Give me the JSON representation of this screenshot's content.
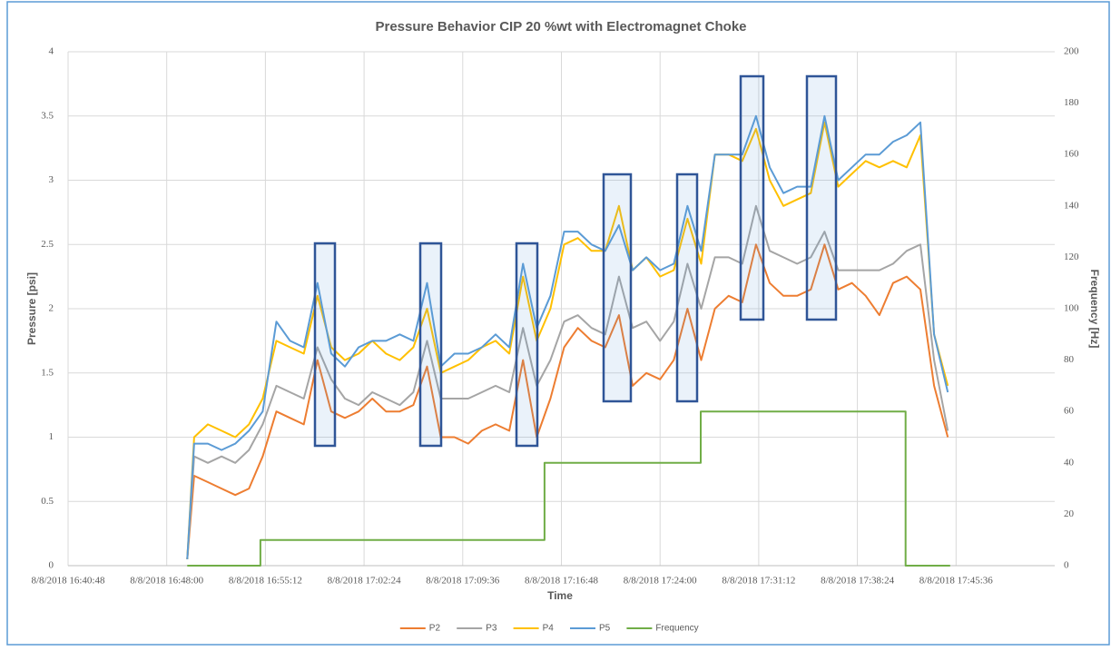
{
  "chart_data": {
    "type": "line",
    "title": "Pressure Behavior CIP 20 %wt with Electromagnet Choke",
    "x_label": "Time",
    "y_label": "Pressure [psi]",
    "y2_label": "Frequency [Hz]",
    "xlim": [
      "2018-08-08T16:40:48",
      "2018-08-08T17:52:48"
    ],
    "xticks": [
      {
        "value": "2018-08-08T16:40:48",
        "label": "8/8/2018 16:40:48"
      },
      {
        "value": "2018-08-08T16:48:00",
        "label": "8/8/2018 16:48:00"
      },
      {
        "value": "2018-08-08T16:55:12",
        "label": "8/8/2018 16:55:12"
      },
      {
        "value": "2018-08-08T17:02:24",
        "label": "8/8/2018 17:02:24"
      },
      {
        "value": "2018-08-08T17:09:36",
        "label": "8/8/2018 17:09:36"
      },
      {
        "value": "2018-08-08T17:16:48",
        "label": "8/8/2018 17:16:48"
      },
      {
        "value": "2018-08-08T17:24:00",
        "label": "8/8/2018 17:24:00"
      },
      {
        "value": "2018-08-08T17:31:12",
        "label": "8/8/2018 17:31:12"
      },
      {
        "value": "2018-08-08T17:38:24",
        "label": "8/8/2018 17:38:24"
      },
      {
        "value": "2018-08-08T17:45:36",
        "label": "8/8/2018 17:45:36"
      }
    ],
    "ylim": [
      0,
      4
    ],
    "yticks": [
      0,
      0.5,
      1,
      1.5,
      2,
      2.5,
      3,
      3.5,
      4
    ],
    "y2lim": [
      0,
      200
    ],
    "y2ticks": [
      0,
      20,
      40,
      60,
      80,
      100,
      120,
      140,
      160,
      180,
      200
    ],
    "grid": true,
    "legend": "bottom",
    "x": [
      "2018-08-08T16:49:30",
      "2018-08-08T16:50:00",
      "2018-08-08T16:51:00",
      "2018-08-08T16:52:00",
      "2018-08-08T16:53:00",
      "2018-08-08T16:54:00",
      "2018-08-08T16:55:00",
      "2018-08-08T16:56:00",
      "2018-08-08T16:57:00",
      "2018-08-08T16:58:00",
      "2018-08-08T16:59:00",
      "2018-08-08T17:00:00",
      "2018-08-08T17:01:00",
      "2018-08-08T17:02:00",
      "2018-08-08T17:03:00",
      "2018-08-08T17:04:00",
      "2018-08-08T17:05:00",
      "2018-08-08T17:06:00",
      "2018-08-08T17:07:00",
      "2018-08-08T17:08:00",
      "2018-08-08T17:09:00",
      "2018-08-08T17:10:00",
      "2018-08-08T17:11:00",
      "2018-08-08T17:12:00",
      "2018-08-08T17:13:00",
      "2018-08-08T17:14:00",
      "2018-08-08T17:15:00",
      "2018-08-08T17:16:00",
      "2018-08-08T17:17:00",
      "2018-08-08T17:18:00",
      "2018-08-08T17:19:00",
      "2018-08-08T17:20:00",
      "2018-08-08T17:21:00",
      "2018-08-08T17:22:00",
      "2018-08-08T17:23:00",
      "2018-08-08T17:24:00",
      "2018-08-08T17:25:00",
      "2018-08-08T17:26:00",
      "2018-08-08T17:27:00",
      "2018-08-08T17:28:00",
      "2018-08-08T17:29:00",
      "2018-08-08T17:30:00",
      "2018-08-08T17:31:00",
      "2018-08-08T17:32:00",
      "2018-08-08T17:33:00",
      "2018-08-08T17:34:00",
      "2018-08-08T17:35:00",
      "2018-08-08T17:36:00",
      "2018-08-08T17:37:00",
      "2018-08-08T17:38:00",
      "2018-08-08T17:39:00",
      "2018-08-08T17:40:00",
      "2018-08-08T17:41:00",
      "2018-08-08T17:42:00",
      "2018-08-08T17:43:00",
      "2018-08-08T17:44:00",
      "2018-08-08T17:45:00"
    ],
    "series": [
      {
        "name": "P2",
        "color": "#ed7d31",
        "values": [
          0.05,
          0.7,
          0.65,
          0.6,
          0.55,
          0.6,
          0.85,
          1.2,
          1.15,
          1.1,
          1.6,
          1.2,
          1.15,
          1.2,
          1.3,
          1.2,
          1.2,
          1.25,
          1.55,
          1.0,
          1.0,
          0.95,
          1.05,
          1.1,
          1.05,
          1.6,
          1.0,
          1.3,
          1.7,
          1.85,
          1.75,
          1.7,
          1.95,
          1.4,
          1.5,
          1.45,
          1.6,
          2.0,
          1.6,
          2.0,
          2.1,
          2.05,
          2.5,
          2.2,
          2.1,
          2.1,
          2.15,
          2.5,
          2.15,
          2.2,
          2.1,
          1.95,
          2.2,
          2.25,
          2.15,
          1.4,
          1.0
        ]
      },
      {
        "name": "P3",
        "color": "#a5a5a5",
        "values": [
          0.05,
          0.85,
          0.8,
          0.85,
          0.8,
          0.9,
          1.1,
          1.4,
          1.35,
          1.3,
          1.7,
          1.45,
          1.3,
          1.25,
          1.35,
          1.3,
          1.25,
          1.35,
          1.75,
          1.3,
          1.3,
          1.3,
          1.35,
          1.4,
          1.35,
          1.85,
          1.4,
          1.6,
          1.9,
          1.95,
          1.85,
          1.8,
          2.25,
          1.85,
          1.9,
          1.75,
          1.9,
          2.35,
          2.0,
          2.4,
          2.4,
          2.35,
          2.8,
          2.45,
          2.4,
          2.35,
          2.4,
          2.6,
          2.3,
          2.3,
          2.3,
          2.3,
          2.35,
          2.45,
          2.5,
          1.6,
          1.05
        ]
      },
      {
        "name": "P4",
        "color": "#ffc000",
        "values": [
          0.05,
          1.0,
          1.1,
          1.05,
          1.0,
          1.1,
          1.3,
          1.75,
          1.7,
          1.65,
          2.1,
          1.7,
          1.6,
          1.65,
          1.75,
          1.65,
          1.6,
          1.7,
          2.0,
          1.5,
          1.55,
          1.6,
          1.7,
          1.75,
          1.65,
          2.25,
          1.75,
          2.0,
          2.5,
          2.55,
          2.45,
          2.45,
          2.8,
          2.3,
          2.4,
          2.25,
          2.3,
          2.7,
          2.35,
          3.2,
          3.2,
          3.15,
          3.4,
          3.0,
          2.8,
          2.85,
          2.9,
          3.45,
          2.95,
          3.05,
          3.15,
          3.1,
          3.15,
          3.1,
          3.35,
          1.8,
          1.4
        ]
      },
      {
        "name": "P5",
        "color": "#5b9bd5",
        "values": [
          0.05,
          0.95,
          0.95,
          0.9,
          0.95,
          1.05,
          1.2,
          1.9,
          1.75,
          1.7,
          2.2,
          1.65,
          1.55,
          1.7,
          1.75,
          1.75,
          1.8,
          1.75,
          2.2,
          1.55,
          1.65,
          1.65,
          1.7,
          1.8,
          1.7,
          2.35,
          1.85,
          2.1,
          2.6,
          2.6,
          2.5,
          2.45,
          2.65,
          2.3,
          2.4,
          2.3,
          2.35,
          2.8,
          2.45,
          3.2,
          3.2,
          3.2,
          3.5,
          3.1,
          2.9,
          2.95,
          2.95,
          3.5,
          3.0,
          3.1,
          3.2,
          3.2,
          3.3,
          3.35,
          3.45,
          1.8,
          1.35
        ]
      },
      {
        "name": "Frequency",
        "color": "#70ad47",
        "axis": "y2",
        "x": [
          "2018-08-08T16:49:30",
          "2018-08-08T16:54:50",
          "2018-08-08T16:54:50",
          "2018-08-08T17:15:34",
          "2018-08-08T17:15:34",
          "2018-08-08T17:26:58",
          "2018-08-08T17:26:58",
          "2018-08-08T17:41:55",
          "2018-08-08T17:41:55",
          "2018-08-08T17:45:10"
        ],
        "values": [
          0,
          0,
          10,
          10,
          40,
          40,
          60,
          60,
          0,
          0
        ]
      }
    ]
  }
}
